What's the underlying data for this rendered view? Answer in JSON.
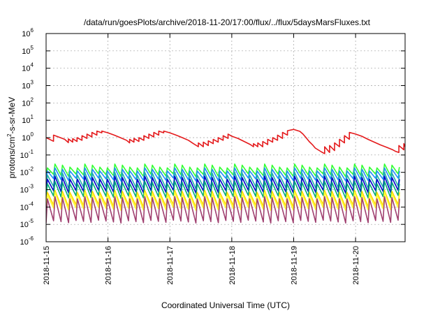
{
  "chart_data": {
    "type": "line",
    "title": "/data/run/goesPlots/archive/2018-11-20/17:00/flux/../flux/5daysMarsFluxes.txt",
    "xlabel": "Coordinated Universal Time (UTC)",
    "ylabel_parts": [
      "protons/cm",
      "2",
      "-s-sr-MeV"
    ],
    "xlim": [
      0,
      5.8
    ],
    "x_ticks": [
      {
        "x": 0,
        "label": "2018-11-15"
      },
      {
        "x": 1,
        "label": "2018-11-16"
      },
      {
        "x": 2,
        "label": "2018-11-17"
      },
      {
        "x": 3,
        "label": "2018-11-18"
      },
      {
        "x": 4,
        "label": "2018-11-19"
      },
      {
        "x": 5,
        "label": "2018-11-20"
      }
    ],
    "y_scale": "log",
    "ylim_exp": [
      -6,
      6
    ],
    "y_ticks": [
      {
        "exp": -6,
        "label": "10",
        "sup": "-6"
      },
      {
        "exp": -5,
        "label": "10",
        "sup": "-5"
      },
      {
        "exp": -4,
        "label": "10",
        "sup": "-4"
      },
      {
        "exp": -3,
        "label": "10",
        "sup": "-3"
      },
      {
        "exp": -2,
        "label": "10",
        "sup": "-2"
      },
      {
        "exp": -1,
        "label": "10",
        "sup": "-1"
      },
      {
        "exp": 0,
        "label": "10",
        "sup": "0"
      },
      {
        "exp": 1,
        "label": "10",
        "sup": "1"
      },
      {
        "exp": 2,
        "label": "10",
        "sup": "2"
      },
      {
        "exp": 3,
        "label": "10",
        "sup": "3"
      },
      {
        "exp": 4,
        "label": "10",
        "sup": "4"
      },
      {
        "exp": 5,
        "label": "10",
        "sup": "5"
      },
      {
        "exp": 6,
        "label": "10",
        "sup": "6"
      }
    ],
    "grid": true,
    "series": [
      {
        "color": "#e41a1c",
        "x": [
          0.0,
          0.12,
          0.12,
          0.2,
          0.3,
          0.36,
          0.36,
          0.43,
          0.43,
          0.5,
          0.5,
          0.58,
          0.58,
          0.66,
          0.66,
          0.74,
          0.74,
          0.82,
          0.82,
          0.9,
          0.9,
          1.0,
          1.1,
          1.2,
          1.3,
          1.35,
          1.35,
          1.42,
          1.42,
          1.5,
          1.5,
          1.58,
          1.58,
          1.66,
          1.66,
          1.74,
          1.74,
          1.82,
          1.82,
          1.9,
          1.9,
          2.0,
          2.1,
          2.2,
          2.3,
          2.38,
          2.46,
          2.46,
          2.54,
          2.54,
          2.62,
          2.62,
          2.7,
          2.7,
          2.78,
          2.78,
          2.86,
          2.86,
          2.94,
          2.94,
          3.0,
          3.1,
          3.2,
          3.3,
          3.35,
          3.35,
          3.42,
          3.42,
          3.5,
          3.5,
          3.58,
          3.58,
          3.66,
          3.66,
          3.74,
          3.74,
          3.82,
          3.82,
          3.9,
          3.9,
          4.0,
          4.1,
          4.15,
          4.2,
          4.25,
          4.3,
          4.35,
          4.45,
          4.5,
          4.5,
          4.58,
          4.58,
          4.66,
          4.66,
          4.74,
          4.74,
          4.82,
          4.82,
          4.9,
          4.9,
          5.0,
          5.1,
          5.2,
          5.3,
          5.4,
          5.5,
          5.6,
          5.65,
          5.7,
          5.7,
          5.78,
          5.78,
          5.8
        ],
        "y": [
          1.0,
          0.62,
          1.4,
          1.1,
          0.8,
          0.52,
          0.85,
          0.55,
          0.88,
          0.6,
          1.0,
          0.7,
          1.3,
          0.9,
          1.6,
          1.1,
          2.0,
          1.4,
          2.4,
          1.9,
          2.4,
          1.9,
          1.4,
          1.0,
          0.7,
          0.5,
          0.8,
          0.55,
          0.9,
          0.6,
          1.0,
          0.7,
          1.3,
          0.9,
          1.6,
          1.1,
          2.0,
          1.4,
          2.4,
          1.9,
          2.4,
          1.9,
          1.4,
          1.0,
          0.7,
          0.45,
          0.3,
          0.5,
          0.3,
          0.55,
          0.35,
          0.65,
          0.45,
          0.8,
          0.55,
          1.0,
          0.7,
          1.3,
          0.9,
          1.6,
          1.2,
          0.9,
          0.6,
          0.4,
          0.3,
          0.45,
          0.3,
          0.5,
          0.3,
          0.6,
          0.4,
          0.8,
          0.55,
          1.0,
          0.7,
          1.4,
          0.9,
          2.0,
          1.4,
          2.5,
          3.0,
          2.3,
          1.6,
          1.0,
          0.6,
          0.4,
          0.25,
          0.15,
          0.12,
          0.3,
          0.14,
          0.35,
          0.18,
          0.5,
          0.3,
          0.8,
          0.5,
          1.3,
          0.8,
          2.0,
          1.6,
          1.2,
          0.8,
          0.55,
          0.38,
          0.28,
          0.2,
          0.16,
          0.14,
          0.35,
          0.2,
          0.45,
          0.3
        ]
      },
      {
        "color": "#33ff33",
        "period": 0.121,
        "start": 0.0,
        "end": 5.8,
        "peak": [
          0.018,
          0.03,
          0.026,
          0.02
        ],
        "trough": 0.007
      },
      {
        "color": "#1f8fff",
        "period": 0.121,
        "start": 0.0,
        "end": 5.8,
        "peak": [
          0.012,
          0.018,
          0.015,
          0.012
        ],
        "trough": 0.004
      },
      {
        "color": "#20b2aa",
        "period": 0.121,
        "start": 0.0,
        "end": 5.8,
        "peak": [
          0.007,
          0.01,
          0.009,
          0.007
        ],
        "trough": 0.0014
      },
      {
        "color": "#0000cc",
        "period": 0.121,
        "start": 0.0,
        "end": 5.8,
        "peak": [
          0.004,
          0.006,
          0.005,
          0.004
        ],
        "trough": 0.0008
      },
      {
        "color": "#00aa77",
        "period": 0.121,
        "start": 0.0,
        "end": 5.8,
        "peak": [
          0.0022,
          0.003,
          0.0026,
          0.0022
        ],
        "trough": 0.0004
      },
      {
        "color": "#ffd700",
        "period": 0.121,
        "start": 0.0,
        "end": 5.8,
        "peak": [
          0.0007,
          0.0009,
          0.0008,
          0.0007
        ],
        "trough": 0.00012
      },
      {
        "color": "#ffff33",
        "period": 0.121,
        "start": 0.0,
        "end": 5.8,
        "peak": [
          0.0005,
          0.0007,
          0.0006,
          0.0005
        ],
        "trough": 8e-05
      },
      {
        "color": "#a04070",
        "period": 0.121,
        "start": 0.0,
        "end": 5.8,
        "peak": [
          0.0003,
          0.0004,
          0.00035,
          0.0003
        ],
        "trough": 1.5e-05
      }
    ]
  }
}
